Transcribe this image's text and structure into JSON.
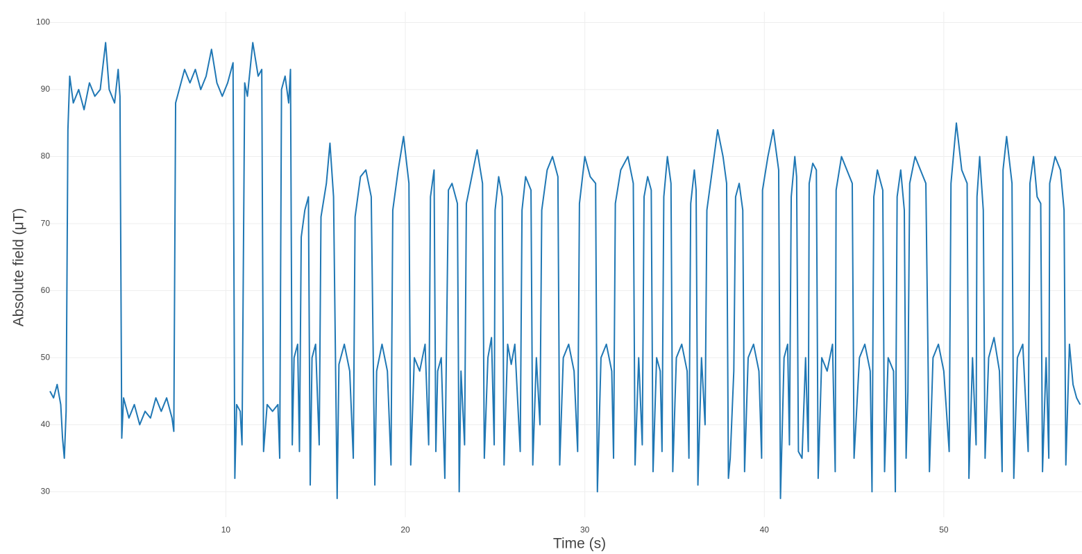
{
  "chart_data": {
    "type": "line",
    "x_label": "Time (s)",
    "y_label": "Absolute field (μT)",
    "color": "#1f77b4",
    "grid": true,
    "xlim": [
      0.2,
      57.7
    ],
    "ylim": [
      26.2,
      101.6
    ],
    "xticks": [
      10,
      20,
      30,
      40,
      50
    ],
    "yticks": [
      30,
      40,
      50,
      60,
      70,
      80,
      90,
      100
    ],
    "x": [
      0.2,
      0.4,
      0.6,
      0.8,
      0.9,
      1.0,
      1.1,
      1.2,
      1.3,
      1.5,
      1.8,
      2.1,
      2.4,
      2.7,
      3.0,
      3.3,
      3.5,
      3.8,
      4.0,
      4.1,
      4.2,
      4.3,
      4.6,
      4.9,
      5.2,
      5.5,
      5.8,
      6.1,
      6.4,
      6.7,
      7.0,
      7.1,
      7.2,
      7.4,
      7.7,
      8.0,
      8.3,
      8.6,
      8.9,
      9.2,
      9.5,
      9.8,
      10.1,
      10.4,
      10.5,
      10.6,
      10.8,
      10.9,
      11.05,
      11.2,
      11.5,
      11.8,
      12.0,
      12.1,
      12.3,
      12.6,
      12.9,
      13.0,
      13.1,
      13.3,
      13.5,
      13.6,
      13.7,
      13.8,
      14.0,
      14.1,
      14.2,
      14.4,
      14.6,
      14.7,
      14.8,
      15.0,
      15.2,
      15.3,
      15.6,
      15.8,
      16.0,
      16.2,
      16.3,
      16.6,
      16.9,
      17.1,
      17.2,
      17.5,
      17.8,
      18.1,
      18.3,
      18.4,
      18.7,
      19.0,
      19.2,
      19.3,
      19.6,
      19.9,
      20.2,
      20.3,
      20.5,
      20.8,
      21.1,
      21.3,
      21.4,
      21.6,
      21.7,
      21.8,
      22.0,
      22.2,
      22.4,
      22.6,
      22.9,
      23.0,
      23.1,
      23.3,
      23.4,
      23.7,
      24.0,
      24.3,
      24.4,
      24.6,
      24.8,
      24.95,
      25.0,
      25.2,
      25.4,
      25.5,
      25.7,
      25.9,
      26.1,
      26.4,
      26.5,
      26.7,
      27.0,
      27.1,
      27.3,
      27.5,
      27.6,
      27.9,
      28.2,
      28.5,
      28.6,
      28.8,
      29.1,
      29.4,
      29.6,
      29.7,
      30.0,
      30.3,
      30.6,
      30.7,
      30.9,
      31.2,
      31.5,
      31.6,
      31.7,
      32.0,
      32.4,
      32.7,
      32.8,
      33.0,
      33.2,
      33.3,
      33.5,
      33.7,
      33.8,
      34.0,
      34.2,
      34.3,
      34.4,
      34.6,
      34.8,
      34.9,
      35.1,
      35.4,
      35.7,
      35.8,
      35.9,
      36.1,
      36.2,
      36.3,
      36.5,
      36.7,
      36.8,
      37.1,
      37.4,
      37.7,
      37.9,
      38.0,
      38.1,
      38.3,
      38.4,
      38.6,
      38.8,
      38.9,
      39.1,
      39.4,
      39.7,
      39.85,
      39.9,
      40.2,
      40.5,
      40.8,
      40.9,
      41.1,
      41.3,
      41.4,
      41.5,
      41.7,
      41.8,
      41.9,
      42.1,
      42.3,
      42.45,
      42.5,
      42.7,
      42.9,
      43.0,
      43.2,
      43.5,
      43.8,
      43.95,
      44.0,
      44.3,
      44.6,
      44.9,
      45.0,
      45.3,
      45.6,
      45.9,
      46.0,
      46.1,
      46.3,
      46.6,
      46.7,
      46.9,
      47.2,
      47.3,
      47.4,
      47.6,
      47.8,
      47.9,
      48.0,
      48.1,
      48.4,
      48.7,
      49.0,
      49.2,
      49.4,
      49.7,
      50.0,
      50.3,
      50.4,
      50.7,
      51.0,
      51.3,
      51.4,
      51.6,
      51.8,
      51.85,
      52.0,
      52.2,
      52.3,
      52.5,
      52.8,
      53.1,
      53.25,
      53.3,
      53.5,
      53.8,
      53.9,
      54.1,
      54.4,
      54.7,
      54.8,
      55.0,
      55.2,
      55.4,
      55.5,
      55.7,
      55.85,
      55.9,
      56.2,
      56.5,
      56.7,
      56.8,
      57.0,
      57.2,
      57.4,
      57.6
    ],
    "values": [
      45,
      44,
      46,
      43,
      38,
      35,
      42,
      84,
      92,
      88,
      90,
      87,
      91,
      89,
      90,
      97,
      90,
      88,
      93,
      89,
      38,
      44,
      41,
      43,
      40,
      42,
      41,
      44,
      42,
      44,
      41,
      39,
      88,
      90,
      93,
      91,
      93,
      90,
      92,
      96,
      91,
      89,
      91,
      94,
      32,
      43,
      42,
      37,
      91,
      89,
      97,
      92,
      93,
      36,
      43,
      42,
      43,
      35,
      90,
      92,
      88,
      93,
      37,
      50,
      52,
      36,
      68,
      72,
      74,
      31,
      50,
      52,
      37,
      71,
      76,
      82,
      74,
      29,
      49,
      52,
      48,
      35,
      71,
      77,
      78,
      74,
      31,
      48,
      52,
      48,
      34,
      72,
      78,
      83,
      76,
      34,
      50,
      48,
      52,
      37,
      74,
      78,
      36,
      48,
      50,
      32,
      75,
      76,
      73,
      30,
      48,
      37,
      73,
      77,
      81,
      76,
      35,
      50,
      53,
      37,
      72,
      77,
      74,
      34,
      52,
      49,
      52,
      36,
      72,
      77,
      75,
      34,
      50,
      40,
      72,
      78,
      80,
      77,
      34,
      50,
      52,
      48,
      36,
      73,
      80,
      77,
      76,
      30,
      50,
      52,
      48,
      35,
      73,
      78,
      80,
      76,
      34,
      50,
      37,
      74,
      77,
      75,
      33,
      50,
      48,
      36,
      74,
      80,
      76,
      33,
      50,
      52,
      48,
      35,
      73,
      78,
      75,
      31,
      50,
      40,
      72,
      78,
      84,
      80,
      76,
      32,
      35,
      48,
      74,
      76,
      72,
      33,
      50,
      52,
      48,
      35,
      75,
      80,
      84,
      78,
      29,
      50,
      52,
      37,
      74,
      80,
      77,
      36,
      35,
      50,
      36,
      76,
      79,
      78,
      32,
      50,
      48,
      52,
      33,
      75,
      80,
      78,
      76,
      35,
      50,
      52,
      48,
      30,
      74,
      78,
      75,
      33,
      50,
      48,
      30,
      74,
      78,
      72,
      35,
      45,
      76,
      80,
      78,
      76,
      33,
      50,
      52,
      48,
      36,
      76,
      85,
      78,
      76,
      32,
      50,
      37,
      74,
      80,
      72,
      35,
      50,
      53,
      48,
      33,
      78,
      83,
      76,
      32,
      50,
      52,
      36,
      76,
      80,
      74,
      73,
      33,
      50,
      35,
      76,
      80,
      78,
      72,
      34,
      52,
      46,
      44,
      43
    ]
  }
}
